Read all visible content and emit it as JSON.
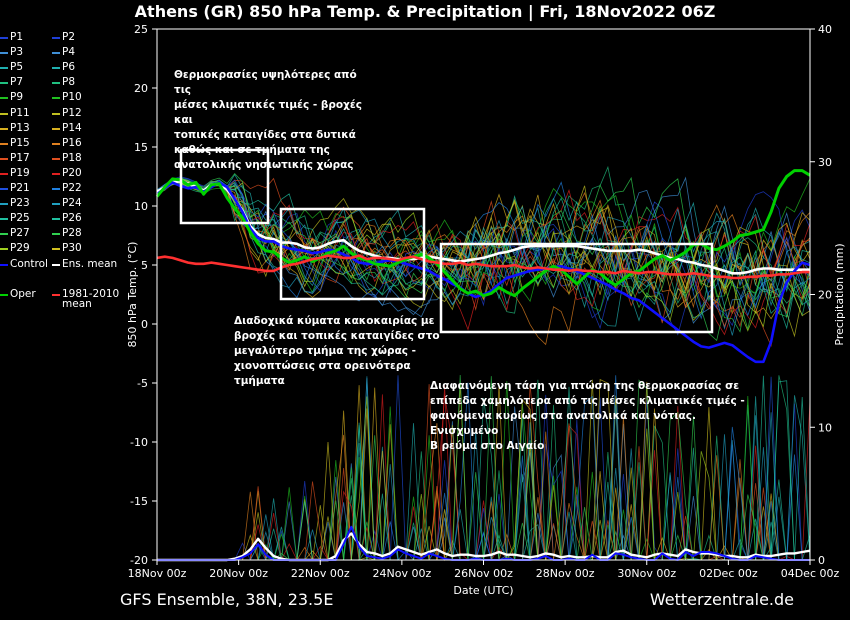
{
  "title": "Athens  (GR)  850 hPa Temp. & Precipitation | Fri, 18Nov2022 06Z",
  "footer_left": "GFS Ensemble, 38N, 23.5E",
  "footer_right": "Wetterzentrale.de",
  "annotations": [
    "Θερμοκρασίες υψηλότερες από τις\nμέσες κλιματικές τιμές - βροχές και\nτοπικές καταιγίδες στα δυτικά\nκαθώς και σε τμήματα της\nανατολικής νησιωτικής χώρας",
    "Διαδοχικά κύματα κακοκαιρίας με\nβροχές και τοπικές καταιγίδες στο\nμεγαλύτερο τμήμα της χώρας -\nχιονοπτώσεις στα ορεινότερα τμήματα",
    "Διαφαινόμενη τάση για πτώση της θερμοκρασίας σε\nεπίπεδα χαμηλότερα από τις μέσες κλιματικές τιμές -\nφαινόμενα κυρίως στα ανατολικά και νότιας. Ενισχυμένο\nΒ ρεύμα στο Αιγαίο"
  ],
  "legend": [
    {
      "label": "P1",
      "color": "#1f3fd6"
    },
    {
      "label": "P2",
      "color": "#1f3fd6"
    },
    {
      "label": "P3",
      "color": "#3f8fd6"
    },
    {
      "label": "P4",
      "color": "#3f8fd6"
    },
    {
      "label": "P5",
      "color": "#20b0b0"
    },
    {
      "label": "P6",
      "color": "#20b0b0"
    },
    {
      "label": "P7",
      "color": "#20c080"
    },
    {
      "label": "P8",
      "color": "#20c080"
    },
    {
      "label": "P9",
      "color": "#20c020"
    },
    {
      "label": "P10",
      "color": "#20c020"
    },
    {
      "label": "P11",
      "color": "#c0c020"
    },
    {
      "label": "P12",
      "color": "#c0c020"
    },
    {
      "label": "P13",
      "color": "#d8b020"
    },
    {
      "label": "P14",
      "color": "#d8b020"
    },
    {
      "label": "P15",
      "color": "#e08020"
    },
    {
      "label": "P16",
      "color": "#e08020"
    },
    {
      "label": "P17",
      "color": "#e05020"
    },
    {
      "label": "P18",
      "color": "#e05020"
    },
    {
      "label": "P19",
      "color": "#e02020"
    },
    {
      "label": "P20",
      "color": "#e02020"
    },
    {
      "label": "P21",
      "color": "#2050e0"
    },
    {
      "label": "P22",
      "color": "#2080e0"
    },
    {
      "label": "P23",
      "color": "#20a0c0"
    },
    {
      "label": "P24",
      "color": "#20a0c0"
    },
    {
      "label": "P25",
      "color": "#20c0a0"
    },
    {
      "label": "P26",
      "color": "#20c0a0"
    },
    {
      "label": "P27",
      "color": "#30d050"
    },
    {
      "label": "P28",
      "color": "#30d050"
    },
    {
      "label": "P29",
      "color": "#a0d020"
    },
    {
      "label": "P30",
      "color": "#d0c020"
    },
    {
      "label": "Control",
      "color": "#1010ff"
    },
    {
      "label": "Ens. mean",
      "color": "#ffffff"
    },
    {
      "label": "Oper",
      "color": "#00d000"
    },
    {
      "label": "1981-2010\nmean",
      "color": "#ff3030"
    }
  ],
  "chart_data": {
    "type": "line",
    "title": "Athens  (GR)  850 hPa Temp. & Precipitation | Fri, 18Nov2022 06Z",
    "xlabel": "Date (UTC)",
    "ylabel": "850 hPa Temp. (°C)",
    "y2label": "Precipitation (mm)",
    "ylim": [
      -20,
      25
    ],
    "y2lim": [
      0,
      40
    ],
    "yticks": [
      25,
      20,
      15,
      10,
      5,
      0,
      -5,
      -10,
      -15,
      -20
    ],
    "y2ticks": [
      40,
      30,
      20,
      10,
      0
    ],
    "xticks": [
      "18Nov 00z",
      "20Nov 00z",
      "22Nov 00z",
      "24Nov 00z",
      "26Nov 00z",
      "28Nov 00z",
      "30Nov 00z",
      "02Dec 00z",
      "04Dec 00z"
    ],
    "x_start": "18Nov2022 00z",
    "x_step_hours": 6,
    "grid": false,
    "legend_position": "left",
    "series": [
      {
        "name": "Ens. mean",
        "color": "#ffffff",
        "axis": "temp",
        "values": [
          11.2,
          11.6,
          12.0,
          12.1,
          11.9,
          11.6,
          11.3,
          11.8,
          11.9,
          11.4,
          10.6,
          9.6,
          8.3,
          7.6,
          7.3,
          7.2,
          6.9,
          6.9,
          6.8,
          6.5,
          6.4,
          6.5,
          6.8,
          7.0,
          7.1,
          6.6,
          6.2,
          6.0,
          5.8,
          5.6,
          5.6,
          5.5,
          5.5,
          5.5,
          5.6,
          5.7,
          5.6,
          5.5,
          5.4,
          5.3,
          5.4,
          5.5,
          5.6,
          5.8,
          6.0,
          6.1,
          6.3,
          6.5,
          6.6,
          6.6,
          6.6,
          6.6,
          6.6,
          6.6,
          6.6,
          6.5,
          6.4,
          6.3,
          6.2,
          6.2,
          6.2,
          6.2,
          6.3,
          6.2,
          6.0,
          5.8,
          5.6,
          5.5,
          5.3,
          5.2,
          5.0,
          4.9,
          4.7,
          4.5,
          4.3,
          4.3,
          4.4,
          4.6,
          4.7,
          4.7,
          4.6,
          4.6,
          4.6,
          4.6,
          4.6
        ]
      },
      {
        "name": "Control",
        "color": "#1010ff",
        "axis": "temp",
        "values": [
          11.0,
          11.5,
          12.0,
          11.7,
          11.5,
          11.6,
          11.2,
          11.6,
          12.0,
          11.6,
          10.6,
          9.5,
          8.1,
          7.3,
          7.0,
          7.0,
          6.6,
          6.4,
          6.3,
          6.2,
          6.0,
          6.1,
          6.3,
          6.2,
          5.9,
          5.6,
          5.2,
          5.1,
          5.1,
          5.3,
          5.4,
          5.3,
          5.1,
          4.9,
          4.7,
          4.5,
          4.1,
          3.8,
          3.4,
          3.1,
          2.6,
          2.3,
          2.5,
          2.8,
          3.4,
          3.9,
          4.1,
          4.3,
          4.5,
          4.6,
          4.7,
          4.8,
          4.9,
          4.7,
          4.5,
          4.2,
          3.9,
          3.6,
          3.3,
          2.9,
          2.6,
          2.2,
          2.0,
          1.5,
          1.0,
          0.5,
          0.0,
          -0.5,
          -1.0,
          -1.5,
          -1.9,
          -2.0,
          -1.8,
          -1.6,
          -1.8,
          -2.3,
          -2.8,
          -3.2,
          -3.2,
          -1.5,
          1.8,
          3.5,
          4.5,
          5.2,
          5.0
        ]
      },
      {
        "name": "Oper",
        "color": "#00d000",
        "axis": "temp",
        "values": [
          10.8,
          11.6,
          12.3,
          12.2,
          11.8,
          12.0,
          11.0,
          11.8,
          11.9,
          10.7,
          9.8,
          9.0,
          7.8,
          6.8,
          6.2,
          6.1,
          5.6,
          5.2,
          5.4,
          5.7,
          5.3,
          5.6,
          6.0,
          6.2,
          6.6,
          6.0,
          5.6,
          5.4,
          5.1,
          5.0,
          4.9,
          5.2,
          5.5,
          5.7,
          5.9,
          5.6,
          5.1,
          4.4,
          3.7,
          3.0,
          2.6,
          2.8,
          2.4,
          2.6,
          3.1,
          2.7,
          2.4,
          3.0,
          3.5,
          4.0,
          4.5,
          4.9,
          4.6,
          4.0,
          3.4,
          4.0,
          4.6,
          4.3,
          3.7,
          3.3,
          3.8,
          4.3,
          4.5,
          5.0,
          5.5,
          5.8,
          5.4,
          5.7,
          6.1,
          6.7,
          6.8,
          6.4,
          6.3,
          6.6,
          7.0,
          7.5,
          7.6,
          7.8,
          8.0,
          9.5,
          11.5,
          12.5,
          13.0,
          13.0,
          12.6
        ]
      },
      {
        "name": "1981-2010 mean",
        "color": "#ff3030",
        "axis": "temp",
        "values": [
          5.6,
          5.7,
          5.6,
          5.4,
          5.2,
          5.1,
          5.1,
          5.2,
          5.1,
          5.0,
          4.9,
          4.8,
          4.7,
          4.6,
          4.5,
          4.5,
          4.8,
          5.0,
          5.1,
          5.3,
          5.5,
          5.6,
          5.8,
          5.7,
          5.6,
          5.6,
          5.8,
          5.5,
          5.6,
          5.6,
          5.5,
          5.4,
          5.6,
          5.7,
          5.5,
          5.3,
          5.2,
          5.1,
          5.1,
          5.2,
          5.0,
          5.1,
          5.0,
          4.9,
          4.9,
          4.9,
          5.0,
          4.8,
          4.7,
          4.8,
          4.7,
          4.6,
          4.6,
          4.5,
          4.6,
          4.5,
          4.5,
          4.4,
          4.4,
          4.3,
          4.5,
          4.4,
          4.3,
          4.4,
          4.4,
          4.3,
          4.2,
          4.2,
          4.2,
          4.3,
          4.2,
          4.1,
          4.0,
          4.0,
          3.9,
          3.9,
          4.0,
          4.0,
          4.1,
          4.1,
          4.2,
          4.2,
          4.3,
          4.4,
          4.4
        ]
      },
      {
        "name": "Ens. mean precipitation",
        "color": "#ffffff",
        "axis": "precip",
        "values": [
          0,
          0,
          0,
          0,
          0,
          0,
          0,
          0,
          0,
          0,
          0.1,
          0.3,
          0.8,
          1.6,
          0.9,
          0.3,
          0.1,
          0,
          0,
          0,
          0,
          0,
          0,
          0.3,
          1.5,
          2.0,
          1.2,
          0.6,
          0.5,
          0.3,
          0.5,
          1.0,
          0.8,
          0.6,
          0.4,
          0.6,
          0.8,
          0.5,
          0.3,
          0.4,
          0.4,
          0.3,
          0.3,
          0.4,
          0.6,
          0.4,
          0.4,
          0.3,
          0.2,
          0.3,
          0.5,
          0.4,
          0.2,
          0.3,
          0.2,
          0.2,
          0.3,
          0.2,
          0.2,
          0.6,
          0.7,
          0.4,
          0.3,
          0.2,
          0.4,
          0.5,
          0.4,
          0.3,
          0.8,
          0.6,
          0.5,
          0.5,
          0.4,
          0.3,
          0.3,
          0.2,
          0.2,
          0.4,
          0.3,
          0.3,
          0.4,
          0.5,
          0.5,
          0.6,
          0.7
        ]
      },
      {
        "name": "Control precipitation",
        "color": "#1010ff",
        "axis": "precip",
        "values": [
          0,
          0,
          0,
          0,
          0,
          0,
          0,
          0,
          0,
          0,
          0,
          0.2,
          0.5,
          1.2,
          0.4,
          0,
          0,
          0,
          0,
          0,
          0,
          0,
          0,
          0,
          1.2,
          2.5,
          1.0,
          0.3,
          0.2,
          0.1,
          0.3,
          0.8,
          0.5,
          0.3,
          0.1,
          0.5,
          0.3,
          0.1,
          0,
          0,
          0,
          0.1,
          0,
          0,
          0,
          0.1,
          0,
          0,
          0,
          0.1,
          0.3,
          0,
          0,
          0.1,
          0,
          0,
          0.4,
          0,
          0,
          0.5,
          0.4,
          0.2,
          0.1,
          0,
          0,
          0.5,
          0.1,
          0,
          0.6,
          0.3,
          0.6,
          0.6,
          0.5,
          0.3,
          0.1,
          0,
          0,
          0.3,
          0.2,
          0.1,
          0,
          0,
          0,
          0,
          0
        ]
      }
    ]
  }
}
